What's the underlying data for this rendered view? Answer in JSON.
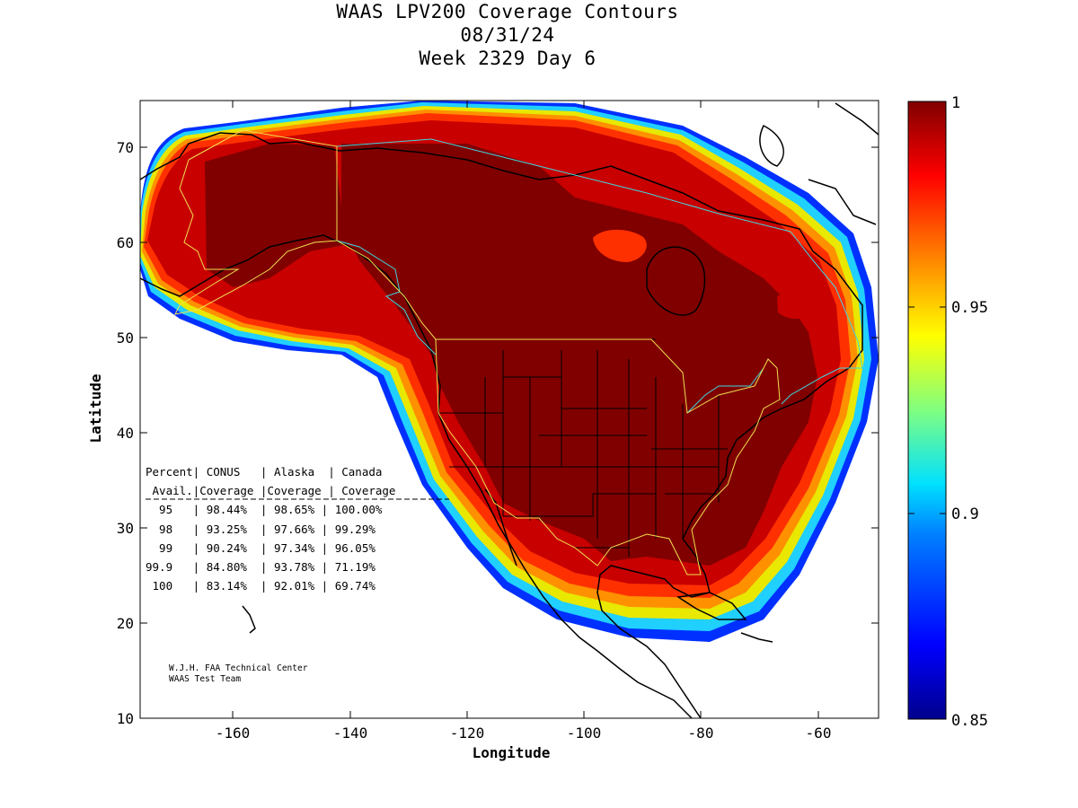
{
  "title": {
    "line1": "WAAS LPV200 Coverage Contours",
    "line2": "08/31/24",
    "line3": "Week 2329 Day 6"
  },
  "axes": {
    "xlabel": "Longitude",
    "ylabel": "Latitude",
    "xticks": [
      "-160",
      "-140",
      "-120",
      "-100",
      "-80",
      "-60"
    ],
    "yticks": [
      "70",
      "60",
      "50",
      "40",
      "30",
      "20",
      "10"
    ],
    "xlim": [
      -175,
      -50
    ],
    "ylim": [
      10,
      75
    ]
  },
  "colorbar": {
    "ticks": [
      "1",
      "0.95",
      "0.9",
      "0.85"
    ],
    "range": [
      0.85,
      1
    ],
    "colormap": "jet"
  },
  "table": {
    "header1": "Percent| CONUS   | Alaska  | Canada",
    "header2": " Avail.|Coverage |Coverage | Coverage",
    "separator": "------------------------------------",
    "rows": [
      "  95   | 98.44%  | 98.65% | 100.00%",
      "  98   | 93.25%  | 97.66% | 99.29%",
      "  99   | 90.24%  | 97.34% | 96.05%",
      "99.9   | 84.80%  | 93.78% | 71.19%",
      " 100   | 83.14%  | 92.01% | 69.74%"
    ]
  },
  "credits": {
    "line1": "W.J.H. FAA Technical Center",
    "line2": "WAAS Test Team"
  },
  "colors": {
    "core": "#800000",
    "high": "#c80000",
    "mid": "#ff3000",
    "orange": "#ff9000",
    "yellow": "#e8e800",
    "cyan": "#20d0ff",
    "blue": "#0030ff",
    "conus_border": "#f0e050",
    "canada_border": "#40d8e0"
  }
}
